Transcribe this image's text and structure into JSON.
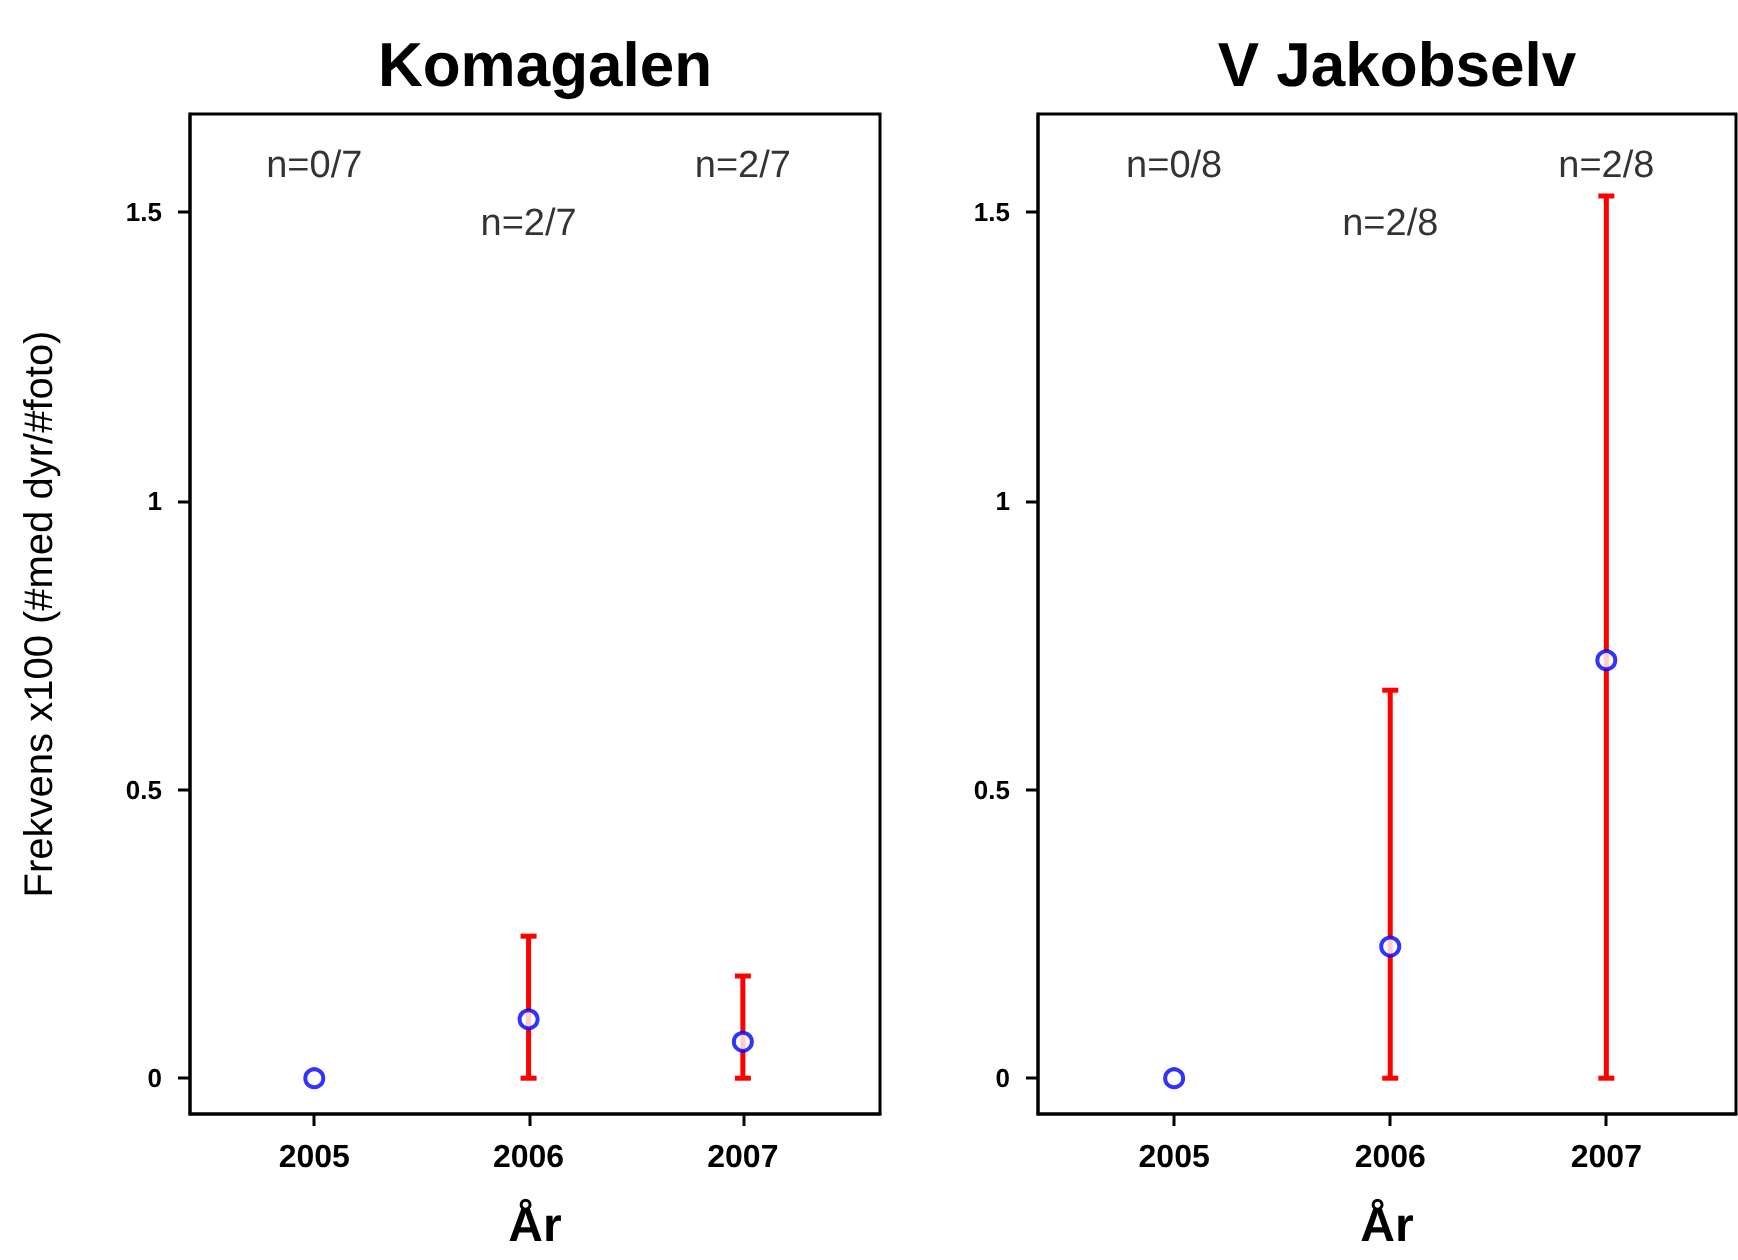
{
  "chart_data": [
    {
      "type": "scatter",
      "title": "Komagalen",
      "xlabel": "År",
      "ylabel": "Frekvens x100 (#med dyr/#foto)",
      "x": [
        2005,
        2006,
        2007
      ],
      "xlim": [
        2004.42,
        2007.64
      ],
      "xticks": [
        2005,
        2006,
        2007
      ],
      "ylim": [
        -0.062,
        1.67
      ],
      "yticks": [
        0,
        0.5,
        1,
        1.5
      ],
      "grid": false,
      "marker": "circle",
      "series": [
        {
          "color": "#0000ff",
          "values": [
            0,
            0.102,
            0.063
          ],
          "errors": [
            null,
            [
              0,
              0.246
            ],
            [
              0,
              0.177
            ]
          ]
        }
      ],
      "annotations": [
        "n=0/7",
        "n=2/7",
        "n=2/7"
      ]
    },
    {
      "type": "scatter",
      "title": "V Jakobselv",
      "xlabel": "År",
      "x": [
        2005,
        2006,
        2007
      ],
      "xlim": [
        2004.37,
        2007.6
      ],
      "xticks": [
        2005,
        2006,
        2007
      ],
      "ylim": [
        -0.062,
        1.67
      ],
      "yticks": [
        0,
        0.5,
        1,
        1.5
      ],
      "grid": false,
      "marker": "circle",
      "series": [
        {
          "color": "#0000ff",
          "values": [
            0,
            0.228,
            0.724
          ],
          "errors": [
            null,
            [
              0,
              0.672
            ],
            [
              0,
              1.528
            ]
          ]
        }
      ],
      "annotations": [
        "n=0/8",
        "n=2/8",
        "n=2/8"
      ]
    }
  ]
}
